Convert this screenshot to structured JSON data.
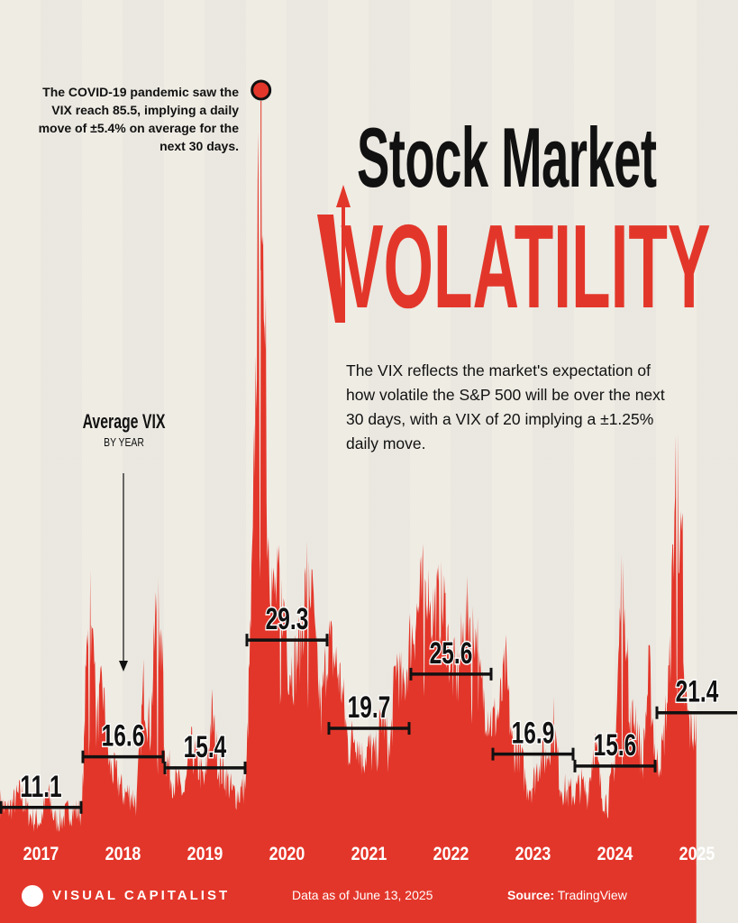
{
  "title": {
    "line1": "Stock Market",
    "line2": "VOLATILITY"
  },
  "description": "The VIX reflects the market's expectation of how volatile the S&P 500 will be over the next 30 days, with a VIX of 20 implying a ±1.25% daily move.",
  "annotation": "The COVID-19 pandemic saw the VIX reach 85.5, implying a daily move of ±5.4% on average for the next 30 days.",
  "legend": {
    "title": "Average VIX",
    "subtitle": "BY YEAR"
  },
  "footer": {
    "brand": "VISUAL CAPITALIST",
    "data_as_of": "Data as of June 13, 2025",
    "source_label": "Source:",
    "source": "TradingView"
  },
  "colors": {
    "accent": "#e3362a",
    "background": "#efece4",
    "text": "#111111"
  },
  "chart_data": {
    "type": "area",
    "ylim": [
      0,
      90
    ],
    "grid": false,
    "peak": {
      "label": "2020",
      "value": 85.5
    },
    "years": [
      "2017",
      "2018",
      "2019",
      "2020",
      "2021",
      "2022",
      "2023",
      "2024",
      "2025"
    ],
    "yearly_average": [
      11.1,
      16.6,
      15.4,
      29.3,
      19.7,
      25.6,
      16.9,
      15.6,
      21.4
    ],
    "yearly_average_labels": [
      "11.1",
      "16.6",
      "15.4",
      "29.3",
      "19.7",
      "25.6",
      "16.9",
      "15.6",
      "21.4"
    ],
    "monthly_vix_approx": [
      [
        12,
        11,
        12,
        13,
        11,
        10,
        10,
        13,
        10,
        10,
        11,
        11
      ],
      [
        11,
        37,
        20,
        25,
        16,
        15,
        13,
        13,
        12,
        25,
        20,
        36
      ],
      [
        18,
        15,
        14,
        13,
        18,
        16,
        14,
        22,
        16,
        15,
        13,
        13
      ],
      [
        14,
        40,
        85.5,
        45,
        35,
        36,
        28,
        27,
        30,
        38,
        30,
        22
      ],
      [
        30,
        28,
        25,
        18,
        20,
        17,
        18,
        17,
        22,
        17,
        28,
        24
      ],
      [
        30,
        33,
        36,
        33,
        34,
        34,
        27,
        26,
        32,
        33,
        26,
        23
      ],
      [
        21,
        22,
        27,
        18,
        18,
        14,
        14,
        17,
        17,
        21,
        14,
        13
      ],
      [
        13,
        14,
        13,
        19,
        13,
        12,
        17,
        38,
        20,
        22,
        16,
        27
      ],
      [
        16,
        18,
        27,
        52,
        25,
        20
      ]
    ]
  }
}
